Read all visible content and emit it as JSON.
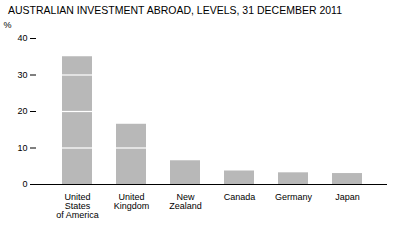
{
  "chart_data": {
    "type": "bar",
    "title": "AUSTRALIAN INVESTMENT ABROAD, LEVELS, 31 DECEMBER 2011",
    "categories": [
      "United\nStates\nof America",
      "United\nKingdom",
      "New\nZealand",
      "Canada",
      "Germany",
      "Japan"
    ],
    "values": [
      35.0,
      16.5,
      6.5,
      3.7,
      3.2,
      3.0
    ],
    "segments": [
      [
        10,
        20,
        30
      ],
      [
        10
      ],
      [],
      [],
      [],
      []
    ],
    "color": "#b8b8b8",
    "ylabel": "%",
    "ylim": [
      0,
      40
    ],
    "yticks": [
      0,
      10,
      20,
      30,
      40
    ],
    "grid": false
  }
}
